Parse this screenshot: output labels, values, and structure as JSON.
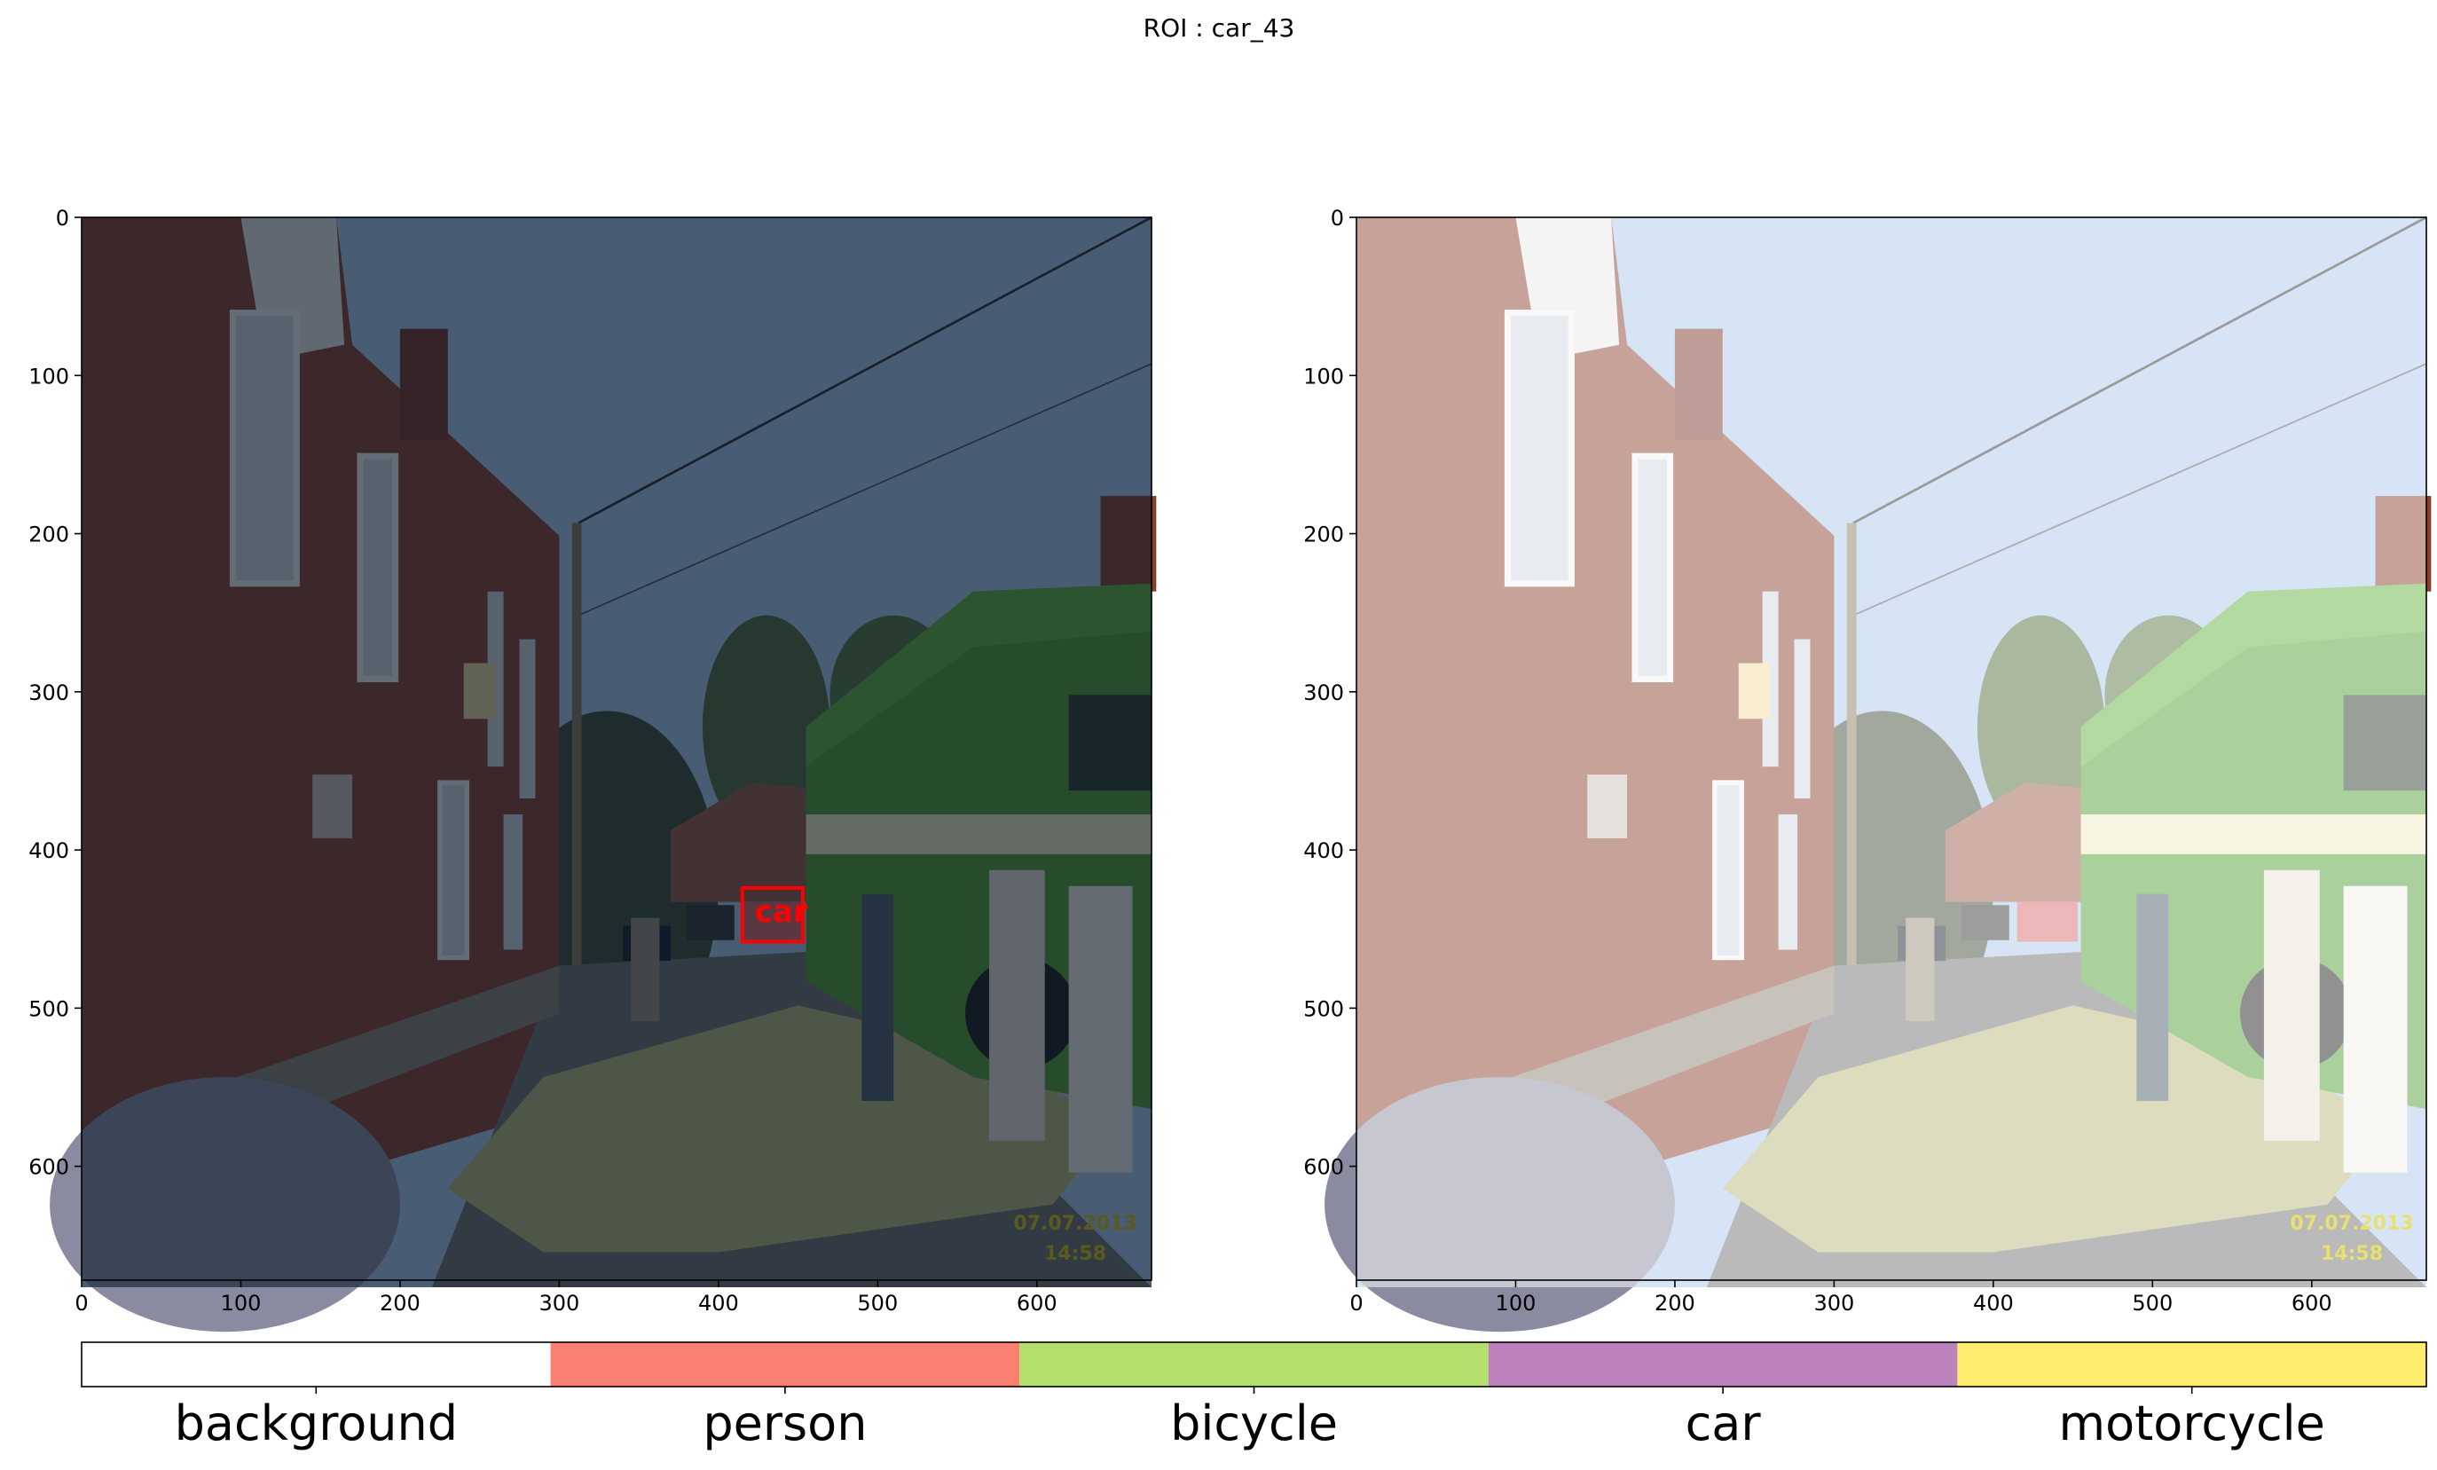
{
  "figure": {
    "suptitle": "ROI : car_43"
  },
  "chart_data": [
    {
      "type": "image",
      "name": "left-panel",
      "xlim": [
        0,
        672
      ],
      "ylim": [
        672,
        0
      ],
      "xticks": [
        0,
        100,
        200,
        300,
        400,
        500,
        600
      ],
      "yticks": [
        0,
        100,
        200,
        300,
        400,
        500,
        600
      ],
      "annotation": {
        "label": "car",
        "x0": 415,
        "y0": 424,
        "x1": 453,
        "y1": 458,
        "color": "#ff0000"
      },
      "timestamp": [
        "07.07.2013",
        "14:58"
      ]
    },
    {
      "type": "image",
      "name": "right-panel",
      "xlim": [
        0,
        672
      ],
      "ylim": [
        672,
        0
      ],
      "xticks": [
        0,
        100,
        200,
        300,
        400,
        500,
        600
      ],
      "yticks": [
        0,
        100,
        200,
        300,
        400,
        500,
        600
      ],
      "timestamp": [
        "07.07.2013",
        "14:58"
      ]
    },
    {
      "type": "legend-colorbar",
      "categories": [
        "background",
        "person",
        "bicycle",
        "car",
        "motorcycle"
      ],
      "colors": [
        "#ffffff",
        "#fa8072",
        "#b4df6c",
        "#bc80bd",
        "#ffed6f"
      ]
    }
  ]
}
